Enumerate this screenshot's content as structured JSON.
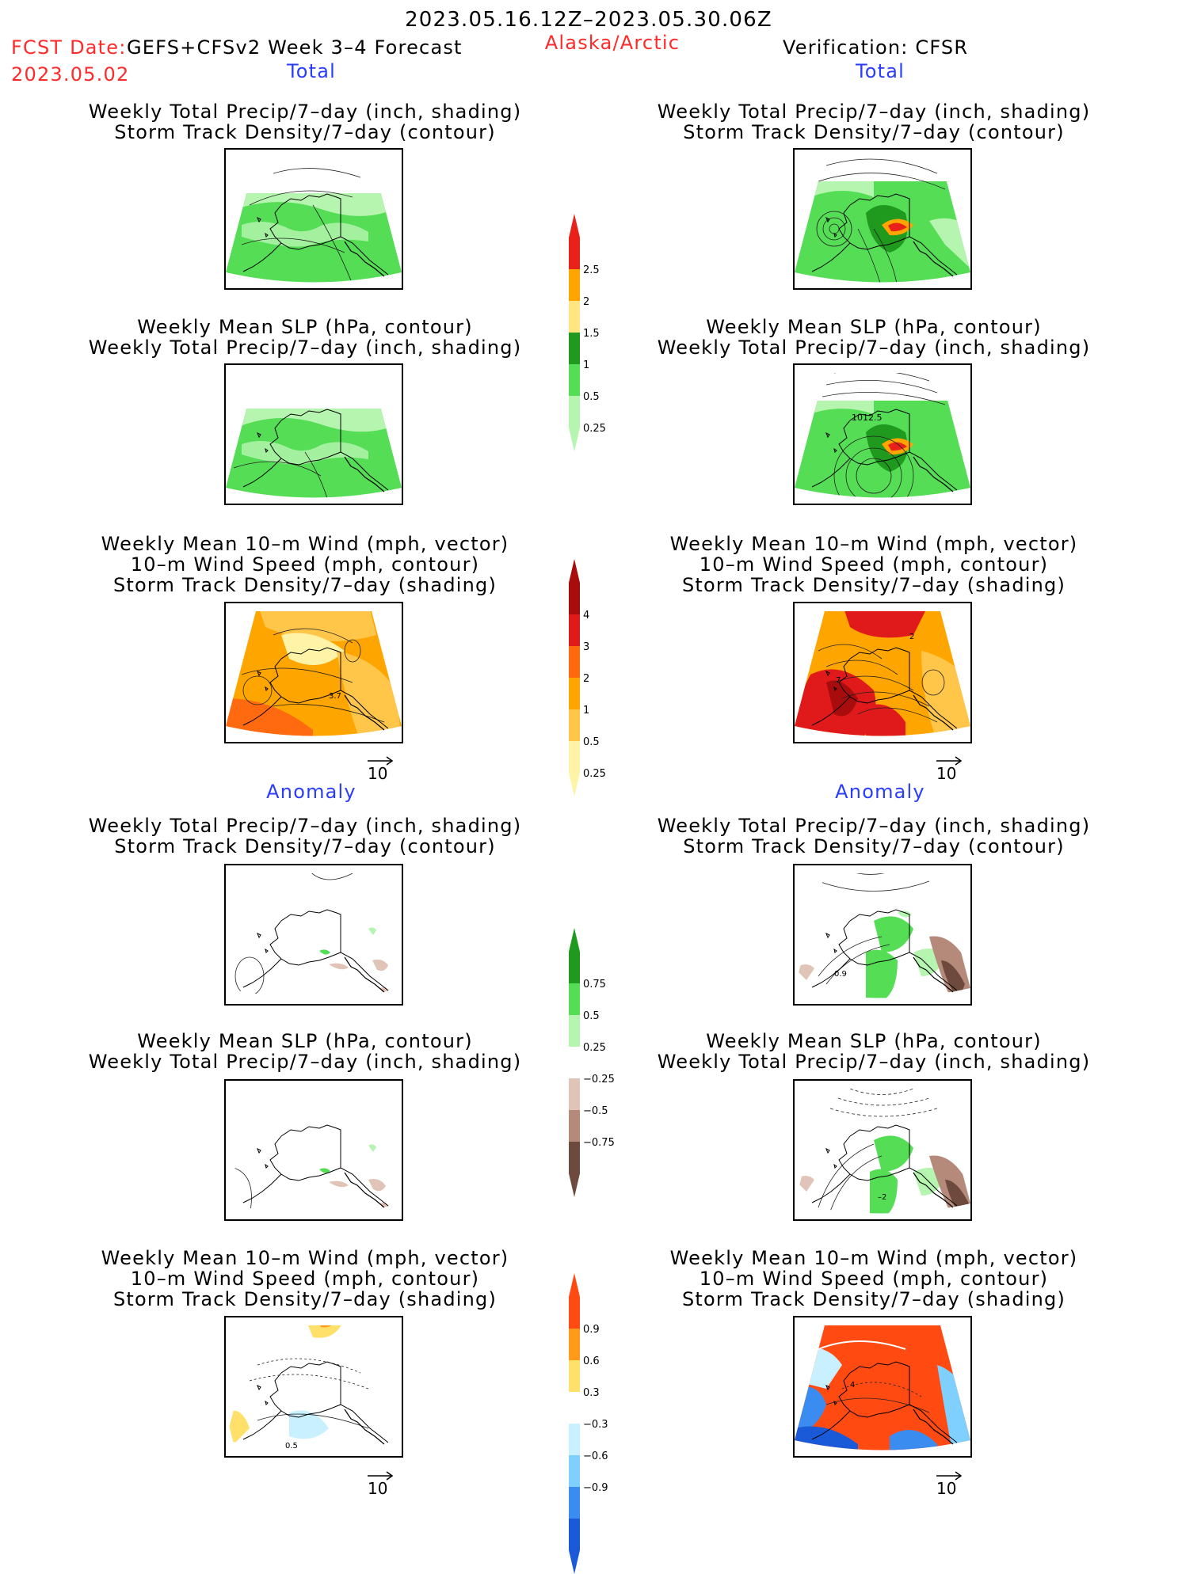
{
  "header": {
    "period": "2023.05.16.12Z–2023.05.30.06Z",
    "fcst_label": "FCST Date:",
    "fcst_date": "2023.05.02",
    "model": "GEFS+CFSv2 Week 3–4 Forecast",
    "region": "Alaska/Arctic",
    "verification": "Verification: CFSR"
  },
  "sections": {
    "total_left": "Total",
    "total_right": "Total",
    "anomaly_left": "Anomaly",
    "anomaly_right": "Anomaly"
  },
  "titles": {
    "precip_track": [
      "Weekly Total Precip/7–day (inch, shading)",
      "Storm Track Density/7–day (contour)"
    ],
    "slp_precip": [
      "Weekly Mean SLP (hPa, contour)",
      "Weekly Total Precip/7–day (inch, shading)"
    ],
    "wind": [
      "Weekly Mean 10–m Wind (mph, vector)",
      "10–m Wind Speed (mph, contour)",
      "Storm Track Density/7–day (shading)"
    ]
  },
  "map_labels": {
    "slp_right_total": "1012.5",
    "wind_left_total": "3.7",
    "wind_right_total_a": "2",
    "wind_right_total_b": "7",
    "precip_right_anom": "0.9",
    "slp_right_anom": "–2",
    "wind_left_anom": "0.5",
    "wind_right_anom": "4"
  },
  "reference_vector": "10",
  "colorbars": {
    "precip_total": {
      "labels": [
        "2.5",
        "2",
        "1.5",
        "1",
        "0.5",
        "0.25"
      ],
      "colors": [
        "#e8221a",
        "#ffa500",
        "#ffe680",
        "#1f9a1f",
        "#55dd55",
        "#b6f5b0"
      ]
    },
    "track_total": {
      "labels": [
        "4",
        "3",
        "2",
        "1",
        "0.5",
        "0.25"
      ],
      "colors": [
        "#a80c0c",
        "#e01a1a",
        "#ff6a10",
        "#ffa500",
        "#ffc64a",
        "#fff3a8"
      ]
    },
    "precip_anom": {
      "labels": [
        "0.75",
        "0.5",
        "0.25",
        "−0.25",
        "−0.5",
        "−0.75"
      ],
      "colors": [
        "#1f9a1f",
        "#55dd55",
        "#b6f5b0",
        "#ffffff",
        "#e0c4b8",
        "#b58a7a",
        "#6e4a3e"
      ]
    },
    "track_anom": {
      "labels": [
        "0.9",
        "0.6",
        "0.3",
        "−0.3",
        "−0.6",
        "−0.9"
      ],
      "colors": [
        "#ff4a12",
        "#ff9a1a",
        "#ffe06a",
        "#ffffff",
        "#c8f0ff",
        "#7fd0ff",
        "#3a8cf0",
        "#1a5ad8"
      ]
    }
  }
}
